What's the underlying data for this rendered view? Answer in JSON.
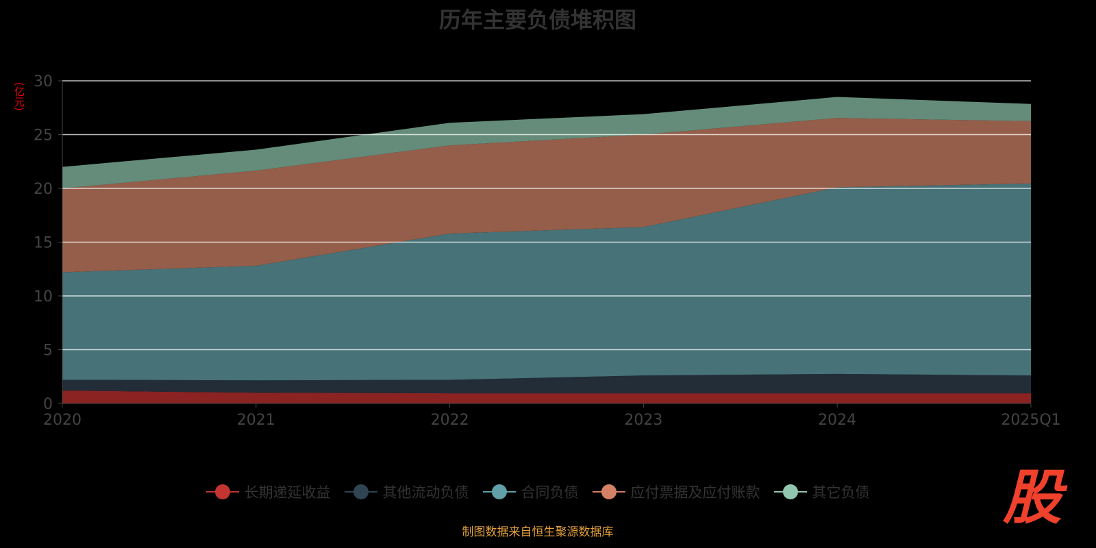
{
  "chart_data": {
    "type": "area",
    "stacked": true,
    "title": "历年主要负债堆积图",
    "ylabel": "(亿元)",
    "xlabel": "",
    "categories": [
      "2020",
      "2021",
      "2022",
      "2023",
      "2024",
      "2025Q1"
    ],
    "ylim": [
      0,
      30
    ],
    "yticks": [
      0,
      5,
      10,
      15,
      20,
      25,
      30
    ],
    "grid": true,
    "legend_position": "bottom",
    "series": [
      {
        "name": "长期递延收益",
        "color": "#c23531",
        "fill": "#8b2323",
        "values": [
          1.2,
          1.0,
          0.95,
          0.95,
          0.95,
          0.95
        ]
      },
      {
        "name": "其他流动负债",
        "color": "#2f4554",
        "fill": "#222d38",
        "values": [
          1.0,
          1.15,
          1.25,
          1.65,
          1.8,
          1.65
        ]
      },
      {
        "name": "合同负债",
        "color": "#61a0a8",
        "fill": "#467278",
        "values": [
          10.0,
          10.65,
          13.6,
          13.8,
          17.35,
          17.85
        ]
      },
      {
        "name": "应付票据及应付账款",
        "color": "#d48265",
        "fill": "#955e4a",
        "values": [
          7.8,
          8.85,
          8.2,
          8.6,
          6.45,
          5.8
        ]
      },
      {
        "name": "其它负债",
        "color": "#91c7ae",
        "fill": "#658c7a",
        "values": [
          2.0,
          1.95,
          2.1,
          1.9,
          1.95,
          1.6
        ]
      }
    ]
  },
  "source": "制图数据来自恒生聚源数据库",
  "logo": "股"
}
